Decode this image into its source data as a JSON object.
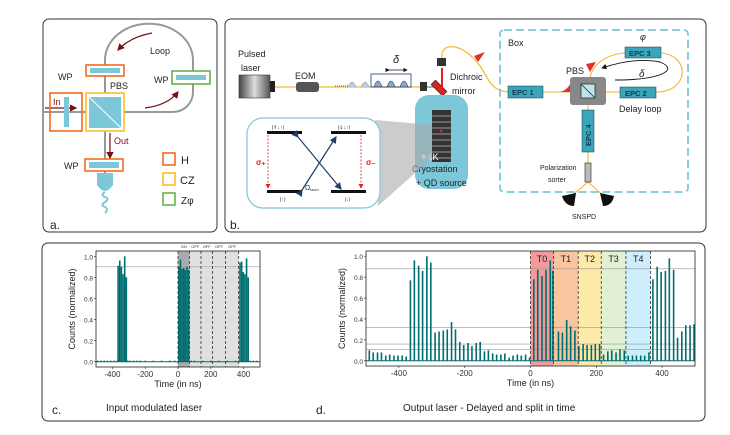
{
  "panel_a": {
    "label": "a.",
    "wp_top": "WP",
    "wp_right": "WP",
    "wp_bottom": "WP",
    "pbs": "PBS",
    "loop": "Loop",
    "in": "In",
    "out": "Out",
    "legend": [
      {
        "label": "H",
        "color": "#f26a21"
      },
      {
        "label": "CZ",
        "color": "#fbbf24"
      },
      {
        "label": "Zφ",
        "color": "#6ab04c"
      }
    ]
  },
  "panel_b": {
    "label": "b.",
    "pulsed": "Pulsed",
    "laser": "laser",
    "eom": "EOM",
    "delta": "δ",
    "dichroic": "Dichroic",
    "mirror": "mirror",
    "cryo_temp": "✷4K",
    "cryostation": "Cryostation",
    "qd_source": "+ QD source",
    "box": "Box",
    "pbs": "PBS",
    "phi": "φ",
    "delta_loop": "δ",
    "epc1": "EPC 1",
    "epc2": "EPC 2",
    "epc3": "EPC 3",
    "epc4": "EPC 4",
    "delay_loop": "Delay loop",
    "polarization": "Polarization",
    "sorter": "sorter",
    "snspd": "SNSPD",
    "inset": {
      "state_top_left": "|⇑↓↑⟩",
      "state_top_right": "|⇓↓↑⟩",
      "state_bottom_left": "|↑⟩",
      "state_bottom_right": "|↓⟩",
      "sigma_plus": "σ₊",
      "sigma_minus": "σ₋",
      "omega": "Ω",
      "omega_sub": "laser"
    },
    "colors": {
      "fiber": "#f5b82e",
      "component": "#7cc8d8",
      "beam": "#e02020"
    }
  },
  "panel_c": {
    "label": "c.",
    "caption": "Input modulated laser"
  },
  "panel_d": {
    "label": "d.",
    "caption": "Output laser - Delayed and split in time"
  },
  "chart_data": [
    {
      "type": "bar",
      "xlabel": "Time (in ns)",
      "ylabel": "Counts (normalized)",
      "xlim": [
        -500,
        500
      ],
      "ylim": [
        -0.05,
        1.05
      ],
      "xticks": [
        -400,
        -200,
        0,
        200,
        400
      ],
      "yticks": [
        0.0,
        0.2,
        0.4,
        0.6,
        0.8,
        1.0
      ],
      "ytick_labels": [
        "0.0",
        "0.2",
        "0.4",
        "0.6",
        "0.8",
        "1.0"
      ],
      "hlines": [
        0.9
      ],
      "bar_color": "#006d6f",
      "regions": [
        {
          "label": "ON",
          "start": 0,
          "end": 70,
          "color": "#aaaaaa"
        },
        {
          "label": "OFF",
          "start": 70,
          "end": 140,
          "color": "#e0e0e0"
        },
        {
          "label": "OFF",
          "start": 140,
          "end": 210,
          "color": "#e0e0e0"
        },
        {
          "label": "OFF",
          "start": 210,
          "end": 290,
          "color": "#e0e0e0"
        },
        {
          "label": "OFF",
          "start": 290,
          "end": 370,
          "color": "#e0e0e0"
        }
      ],
      "x": [
        -490,
        -470,
        -450,
        -430,
        -410,
        -390,
        -372,
        -365,
        -355,
        -345,
        -335,
        -325,
        -315,
        -305,
        -290,
        -270,
        -250,
        -230,
        -200,
        -150,
        -100,
        -50,
        -20,
        5,
        15,
        25,
        35,
        45,
        55,
        65,
        80,
        100,
        150,
        200,
        250,
        300,
        350,
        370,
        378,
        388,
        398,
        408,
        418,
        428,
        440,
        460,
        480
      ],
      "y": [
        0.01,
        0.01,
        0.01,
        0.01,
        0.01,
        0.01,
        0.01,
        0.91,
        0.96,
        0.9,
        0.83,
        1.0,
        0.8,
        0.01,
        0.01,
        0.01,
        0.01,
        0.01,
        0.01,
        0.01,
        0.01,
        0.01,
        0.01,
        0.9,
        0.97,
        0.88,
        0.89,
        0.87,
        0.9,
        0.87,
        0.01,
        0.01,
        0.01,
        0.01,
        0.01,
        0.01,
        0.01,
        0.01,
        0.94,
        0.95,
        0.85,
        0.83,
        0.98,
        0.8,
        0.01,
        0.01,
        0.01
      ]
    },
    {
      "type": "bar",
      "xlabel": "Time (in ns)",
      "ylabel": "Counts (normalized)",
      "xlim": [
        -500,
        500
      ],
      "ylim": [
        -0.05,
        1.05
      ],
      "xticks": [
        -400,
        -200,
        0,
        200,
        400
      ],
      "yticks": [
        0.0,
        0.2,
        0.4,
        0.6,
        0.8,
        1.0
      ],
      "ytick_labels": [
        "0.0",
        "0.2",
        "0.4",
        "0.6",
        "0.8",
        "1.0"
      ],
      "hlines": [
        0.88,
        0.32,
        0.16,
        0.11
      ],
      "bar_color": "#006d6f",
      "regions": [
        {
          "label": "T0",
          "start": 0,
          "end": 70,
          "color": "#f59a9a"
        },
        {
          "label": "T1",
          "start": 70,
          "end": 145,
          "color": "#f9c4a0"
        },
        {
          "label": "T2",
          "start": 145,
          "end": 215,
          "color": "#fde9a8"
        },
        {
          "label": "T3",
          "start": 215,
          "end": 290,
          "color": "#e2f0d3"
        },
        {
          "label": "T4",
          "start": 290,
          "end": 365,
          "color": "#cdeefa"
        }
      ],
      "x": [
        -490,
        -478,
        -465,
        -453,
        -440,
        -428,
        -415,
        -403,
        -390,
        -378,
        -365,
        -353,
        -340,
        -328,
        -315,
        -303,
        -290,
        -278,
        -265,
        -253,
        -240,
        -228,
        -215,
        -203,
        -190,
        -178,
        -165,
        -153,
        -140,
        -128,
        -115,
        -103,
        -90,
        -78,
        -65,
        -53,
        -40,
        -28,
        -15,
        -3,
        10,
        22,
        35,
        47,
        60,
        68,
        85,
        97,
        110,
        122,
        135,
        147,
        160,
        172,
        185,
        197,
        210,
        222,
        235,
        247,
        260,
        272,
        285,
        297,
        310,
        322,
        335,
        347,
        360,
        372,
        385,
        397,
        410,
        422,
        435,
        447,
        460,
        472,
        485,
        497
      ],
      "y": [
        0.1,
        0.08,
        0.08,
        0.08,
        0.05,
        0.06,
        0.05,
        0.05,
        0.05,
        0.04,
        0.77,
        0.96,
        0.91,
        0.86,
        1.0,
        0.94,
        0.27,
        0.28,
        0.29,
        0.3,
        0.37,
        0.3,
        0.18,
        0.15,
        0.17,
        0.14,
        0.17,
        0.18,
        0.09,
        0.1,
        0.07,
        0.06,
        0.06,
        0.07,
        0.03,
        0.05,
        0.06,
        0.05,
        0.06,
        0.03,
        0.78,
        0.87,
        0.81,
        0.87,
        0.96,
        0.86,
        0.28,
        0.27,
        0.39,
        0.33,
        0.29,
        0.14,
        0.16,
        0.15,
        0.15,
        0.16,
        0.16,
        0.06,
        0.09,
        0.1,
        0.08,
        0.11,
        0.1,
        0.05,
        0.05,
        0.05,
        0.05,
        0.05,
        0.08,
        0.78,
        0.9,
        0.85,
        0.86,
        0.98,
        0.87,
        0.22,
        0.28,
        0.34,
        0.34,
        0.35
      ]
    }
  ]
}
